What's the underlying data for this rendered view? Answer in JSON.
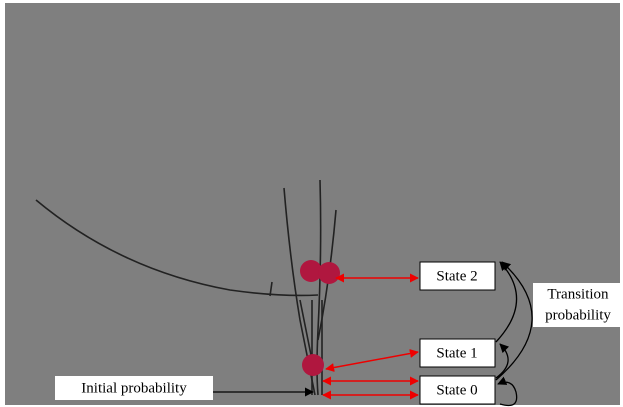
{
  "states": [
    {
      "label": "State 2"
    },
    {
      "label": "State 1"
    },
    {
      "label": "State 0"
    }
  ],
  "transition_label": [
    "Transition",
    "probability"
  ],
  "initial_label": "Initial probability"
}
